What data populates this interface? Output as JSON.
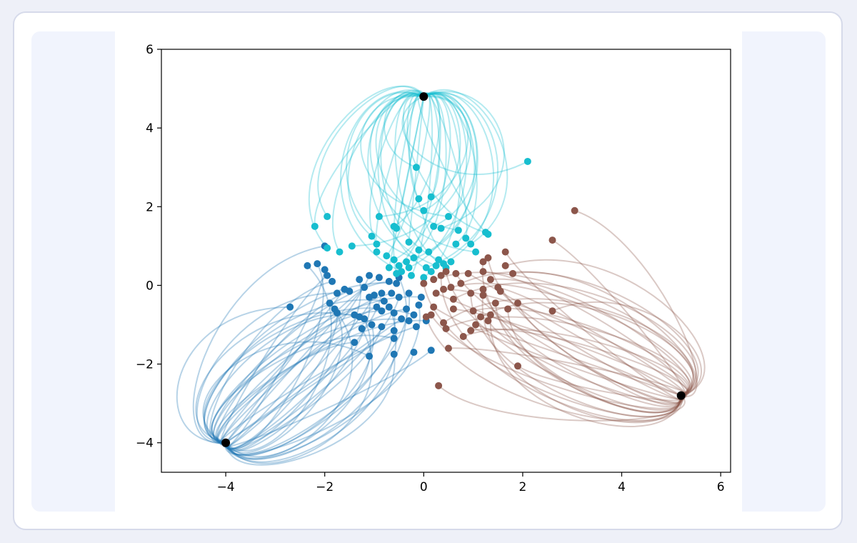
{
  "chart_data": {
    "type": "scatter",
    "title": "",
    "xlabel": "",
    "ylabel": "",
    "xlim": [
      -5.3,
      6.2
    ],
    "ylim": [
      -4.75,
      6
    ],
    "grid": false,
    "xticks": [
      -4,
      -2,
      0,
      2,
      4,
      6
    ],
    "yticks": [
      -4,
      -2,
      0,
      2,
      4,
      6
    ],
    "xtick_labels": [
      "−4",
      "−2",
      "0",
      "2",
      "4",
      "6"
    ],
    "ytick_labels": [
      "−4",
      "−2",
      "0",
      "2",
      "4",
      "6"
    ],
    "series": [
      {
        "color": "#1f77b4",
        "target": [
          -4.0,
          -4.0
        ],
        "points": [
          [
            -2.7,
            -0.55
          ],
          [
            -2.35,
            0.5
          ],
          [
            -2.15,
            0.55
          ],
          [
            -2.0,
            0.4
          ],
          [
            -1.95,
            0.25
          ],
          [
            -1.85,
            0.1
          ],
          [
            -1.75,
            -0.2
          ],
          [
            -1.9,
            -0.45
          ],
          [
            -1.8,
            -0.6
          ],
          [
            -1.75,
            -0.7
          ],
          [
            -1.6,
            -0.1
          ],
          [
            -1.5,
            -0.15
          ],
          [
            -1.4,
            -0.75
          ],
          [
            -1.3,
            -0.8
          ],
          [
            -1.2,
            -0.85
          ],
          [
            -1.1,
            -0.3
          ],
          [
            -1.0,
            -0.25
          ],
          [
            -0.95,
            -0.55
          ],
          [
            -0.85,
            -0.65
          ],
          [
            -0.8,
            -0.4
          ],
          [
            -0.7,
            -0.55
          ],
          [
            -0.6,
            -0.7
          ],
          [
            -0.5,
            -0.3
          ],
          [
            -0.45,
            -0.85
          ],
          [
            -0.35,
            -0.6
          ],
          [
            -0.3,
            -0.9
          ],
          [
            -0.2,
            -0.75
          ],
          [
            -0.1,
            -0.5
          ],
          [
            -1.3,
            0.15
          ],
          [
            -1.1,
            0.25
          ],
          [
            -0.9,
            0.2
          ],
          [
            -0.7,
            0.1
          ],
          [
            -0.55,
            0.05
          ],
          [
            -1.25,
            -1.1
          ],
          [
            -1.05,
            -1.0
          ],
          [
            -0.85,
            -1.05
          ],
          [
            -0.6,
            -1.15
          ],
          [
            -1.4,
            -1.45
          ],
          [
            -0.6,
            -1.35
          ],
          [
            -1.1,
            -1.8
          ],
          [
            -0.6,
            -1.75
          ],
          [
            -0.2,
            -1.7
          ],
          [
            0.15,
            -1.65
          ],
          [
            -0.15,
            -1.05
          ],
          [
            0.05,
            -0.9
          ],
          [
            -2.0,
            1.0
          ],
          [
            -0.5,
            0.2
          ],
          [
            -0.3,
            -0.2
          ],
          [
            -0.85,
            -0.2
          ],
          [
            -1.2,
            -0.05
          ],
          [
            -0.65,
            -0.2
          ],
          [
            -0.05,
            -0.3
          ]
        ]
      },
      {
        "color": "#17becf",
        "target": [
          0.0,
          4.8
        ],
        "points": [
          [
            2.1,
            3.15
          ],
          [
            -0.15,
            3.0
          ],
          [
            -0.1,
            2.2
          ],
          [
            0.15,
            2.25
          ],
          [
            0.0,
            1.9
          ],
          [
            -0.9,
            1.75
          ],
          [
            0.5,
            1.75
          ],
          [
            -1.95,
            1.75
          ],
          [
            -2.2,
            1.5
          ],
          [
            -0.55,
            1.45
          ],
          [
            -0.6,
            1.5
          ],
          [
            0.2,
            1.5
          ],
          [
            0.35,
            1.45
          ],
          [
            0.7,
            1.4
          ],
          [
            1.25,
            1.35
          ],
          [
            1.3,
            1.3
          ],
          [
            0.85,
            1.2
          ],
          [
            0.65,
            1.05
          ],
          [
            0.95,
            1.05
          ],
          [
            1.05,
            0.85
          ],
          [
            -1.05,
            1.25
          ],
          [
            -0.95,
            1.05
          ],
          [
            -0.3,
            1.1
          ],
          [
            -0.1,
            0.9
          ],
          [
            0.1,
            0.85
          ],
          [
            -1.45,
            1.0
          ],
          [
            -1.95,
            0.95
          ],
          [
            -1.7,
            0.85
          ],
          [
            -0.95,
            0.85
          ],
          [
            -0.75,
            0.75
          ],
          [
            -0.6,
            0.65
          ],
          [
            -0.35,
            0.6
          ],
          [
            -0.2,
            0.7
          ],
          [
            0.3,
            0.65
          ],
          [
            0.55,
            0.6
          ],
          [
            -0.7,
            0.45
          ],
          [
            -0.5,
            0.5
          ],
          [
            -0.3,
            0.45
          ],
          [
            0.05,
            0.45
          ],
          [
            0.25,
            0.5
          ],
          [
            0.45,
            0.45
          ],
          [
            -0.55,
            0.3
          ],
          [
            -0.25,
            0.25
          ],
          [
            0.0,
            0.2
          ],
          [
            0.4,
            0.55
          ],
          [
            -0.45,
            0.35
          ],
          [
            0.15,
            0.35
          ]
        ]
      },
      {
        "color": "#8c564b",
        "target": [
          5.2,
          -2.8
        ],
        "points": [
          [
            3.05,
            1.9
          ],
          [
            2.6,
            1.15
          ],
          [
            1.65,
            0.85
          ],
          [
            1.3,
            0.7
          ],
          [
            1.2,
            0.6
          ],
          [
            1.65,
            0.5
          ],
          [
            1.8,
            0.3
          ],
          [
            1.2,
            0.35
          ],
          [
            0.9,
            0.3
          ],
          [
            0.65,
            0.3
          ],
          [
            0.45,
            0.35
          ],
          [
            0.35,
            0.25
          ],
          [
            0.2,
            0.15
          ],
          [
            1.35,
            0.15
          ],
          [
            1.5,
            -0.05
          ],
          [
            1.55,
            -0.15
          ],
          [
            1.2,
            -0.1
          ],
          [
            0.95,
            -0.2
          ],
          [
            0.75,
            0.05
          ],
          [
            0.55,
            -0.05
          ],
          [
            0.4,
            -0.1
          ],
          [
            0.25,
            -0.2
          ],
          [
            1.9,
            -0.45
          ],
          [
            1.7,
            -0.6
          ],
          [
            1.35,
            -0.75
          ],
          [
            1.15,
            -0.8
          ],
          [
            1.0,
            -0.65
          ],
          [
            0.6,
            -0.6
          ],
          [
            0.2,
            -0.55
          ],
          [
            0.15,
            -0.75
          ],
          [
            0.05,
            -0.8
          ],
          [
            0.4,
            -0.95
          ],
          [
            0.45,
            -1.1
          ],
          [
            0.95,
            -1.15
          ],
          [
            1.05,
            -1.0
          ],
          [
            1.3,
            -0.9
          ],
          [
            1.45,
            -0.45
          ],
          [
            1.2,
            -0.25
          ],
          [
            2.6,
            -0.65
          ],
          [
            0.8,
            -1.3
          ],
          [
            0.5,
            -1.6
          ],
          [
            1.9,
            -2.05
          ],
          [
            0.3,
            -2.55
          ],
          [
            0.0,
            0.05
          ],
          [
            0.6,
            -0.35
          ]
        ]
      }
    ],
    "targets": [
      [
        -4.0,
        -4.0
      ],
      [
        0.0,
        4.8
      ],
      [
        5.2,
        -2.8
      ]
    ],
    "target_color": "#000000"
  }
}
